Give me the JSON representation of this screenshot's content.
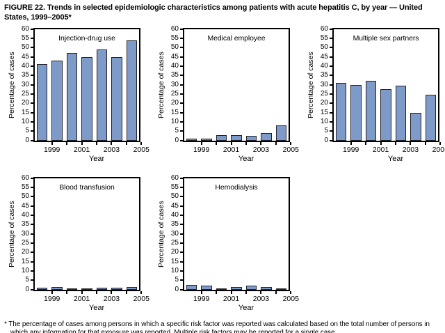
{
  "title": "FIGURE 22. Trends in selected epidemiologic characteristics among patients with acute hepatitis C, by year — United States, 1999–2005*",
  "footnote": "* The percentage of cases among persons in which a specific risk factor was reported was calculated based on the total number of persons in which any information for that exposure was reported. Multiple risk factors may be reported for a single case.",
  "colors": {
    "bar_fill": "#7e9ac8",
    "bar_border": "#23232d",
    "axis": "#000000"
  },
  "axes_shared": {
    "ylabel": "Percentage of cases",
    "xlabel": "Year",
    "ylim": [
      0,
      60
    ],
    "y_tick_step": 5,
    "x_tick_labels": [
      "1999",
      "2001",
      "2003",
      "2005"
    ]
  },
  "chart_data": [
    {
      "type": "bar",
      "title": "Injection-drug use",
      "categories": [
        "1999",
        "2000",
        "2001",
        "2002",
        "2003",
        "2004",
        "2005"
      ],
      "values": [
        41,
        43,
        47,
        45,
        49,
        45,
        54
      ],
      "xlabel": "Year",
      "ylabel": "Percentage of cases",
      "ylim": [
        0,
        60
      ],
      "y_tick_step": 5
    },
    {
      "type": "bar",
      "title": "Medical employee",
      "categories": [
        "1999",
        "2000",
        "2001",
        "2002",
        "2003",
        "2004",
        "2005"
      ],
      "values": [
        1,
        1,
        3,
        3,
        2.5,
        4,
        8
      ],
      "xlabel": "Year",
      "ylabel": "Percentage of cases",
      "ylim": [
        0,
        60
      ],
      "y_tick_step": 5
    },
    {
      "type": "bar",
      "title": "Multiple sex partners",
      "categories": [
        "1999",
        "2000",
        "2001",
        "2002",
        "2003",
        "2004",
        "2005"
      ],
      "values": [
        31,
        30,
        32,
        27.5,
        29.5,
        15,
        24.5
      ],
      "xlabel": "Year",
      "ylabel": "Percentage of cases",
      "ylim": [
        0,
        60
      ],
      "y_tick_step": 5
    },
    {
      "type": "bar",
      "title": "Blood transfusion",
      "categories": [
        "1999",
        "2000",
        "2001",
        "2002",
        "2003",
        "2004",
        "2005"
      ],
      "values": [
        0.8,
        1.2,
        0.3,
        0.5,
        0.8,
        0.8,
        1.2
      ],
      "xlabel": "Year",
      "ylabel": "Percentage of cases",
      "ylim": [
        0,
        60
      ],
      "y_tick_step": 5
    },
    {
      "type": "bar",
      "title": "Hemodialysis",
      "categories": [
        "1999",
        "2000",
        "2001",
        "2002",
        "2003",
        "2004",
        "2005"
      ],
      "values": [
        2.3,
        2.2,
        0.2,
        1.2,
        2,
        1.2,
        0.5
      ],
      "xlabel": "Year",
      "ylabel": "Percentage of cases",
      "ylim": [
        0,
        60
      ],
      "y_tick_step": 5
    }
  ]
}
